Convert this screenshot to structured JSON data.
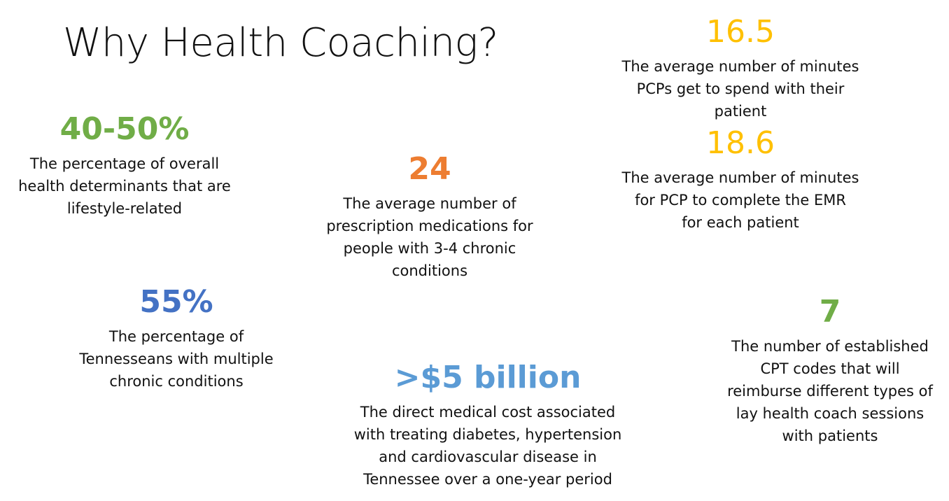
{
  "title": "Why Health Coaching?",
  "stats": [
    {
      "value": "40-50%",
      "color": "#70ad47",
      "bold": true,
      "description": [
        "The percentage of overall",
        "health determinants that are",
        "lifestyle-related"
      ]
    },
    {
      "value": "24",
      "color": "#ed7d31",
      "bold": true,
      "description": [
        "The average number of",
        "prescription medications for",
        "people with 3-4 chronic",
        "conditions"
      ]
    },
    {
      "value": "55%",
      "color": "#4472c4",
      "bold": true,
      "description": [
        "The percentage of",
        "Tennesseans with multiple",
        "chronic conditions"
      ]
    },
    {
      "value": ">$5 billion",
      "color": "#5b9bd5",
      "bold": true,
      "description": [
        "The direct medical cost associated",
        "with treating diabetes, hypertension",
        "and cardiovascular disease in",
        "Tennessee over a one-year period"
      ]
    },
    {
      "value": "16.5",
      "color": "#ffc000",
      "bold": false,
      "description": [
        "The average number of minutes",
        "PCPs get to spend with their",
        "patient"
      ]
    },
    {
      "value": "18.6",
      "color": "#ffc000",
      "bold": false,
      "description": [
        "The average number of minutes",
        "for PCP to complete the EMR",
        "for each patient"
      ]
    },
    {
      "value": "7",
      "color": "#70ad47",
      "bold": true,
      "description": [
        "The number of established",
        "CPT codes that will",
        "reimburse different types of",
        "lay health coach sessions",
        "with patients"
      ]
    }
  ]
}
